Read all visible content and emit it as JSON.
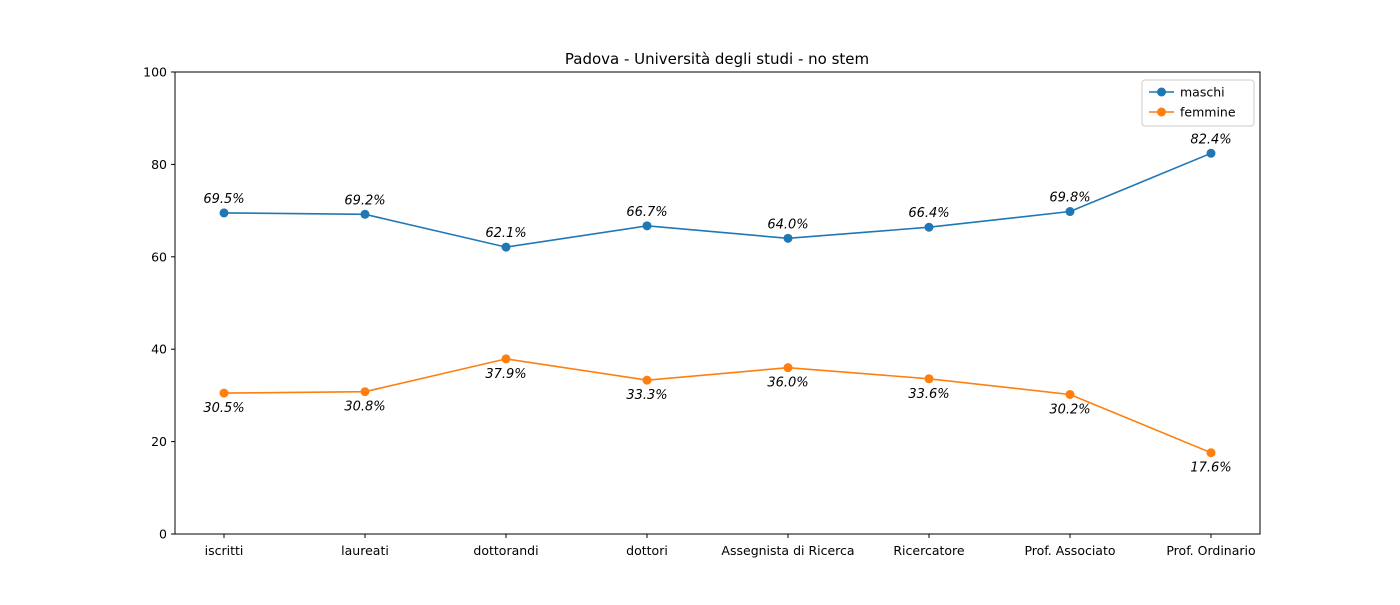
{
  "chart_data": {
    "type": "line",
    "title": "Padova - Università degli studi - no stem",
    "xlabel": "",
    "ylabel": "",
    "ylim": [
      0,
      100
    ],
    "yticks": [
      "0",
      "20",
      "40",
      "60",
      "80",
      "100"
    ],
    "ytick_values": [
      0,
      20,
      40,
      60,
      80,
      100
    ],
    "categories": [
      "iscritti",
      "laureati",
      "dottorandi",
      "dottori",
      "Assegnista di Ricerca",
      "Ricercatore",
      "Prof. Associato",
      "Prof. Ordinario"
    ],
    "series": [
      {
        "name": "maschi",
        "color": "#1f77b4",
        "values": [
          69.5,
          69.2,
          62.1,
          66.7,
          64.0,
          66.4,
          69.8,
          82.4
        ],
        "labels": [
          "69.5%",
          "69.2%",
          "62.1%",
          "66.7%",
          "64.0%",
          "66.4%",
          "69.8%",
          "82.4%"
        ],
        "label_position": "above"
      },
      {
        "name": "femmine",
        "color": "#ff7f0e",
        "values": [
          30.5,
          30.8,
          37.9,
          33.3,
          36.0,
          33.6,
          30.2,
          17.6
        ],
        "labels": [
          "30.5%",
          "30.8%",
          "37.9%",
          "33.3%",
          "36.0%",
          "33.6%",
          "30.2%",
          "17.6%"
        ],
        "label_position": "below"
      }
    ],
    "legend_position": "top-right",
    "grid": false
  }
}
